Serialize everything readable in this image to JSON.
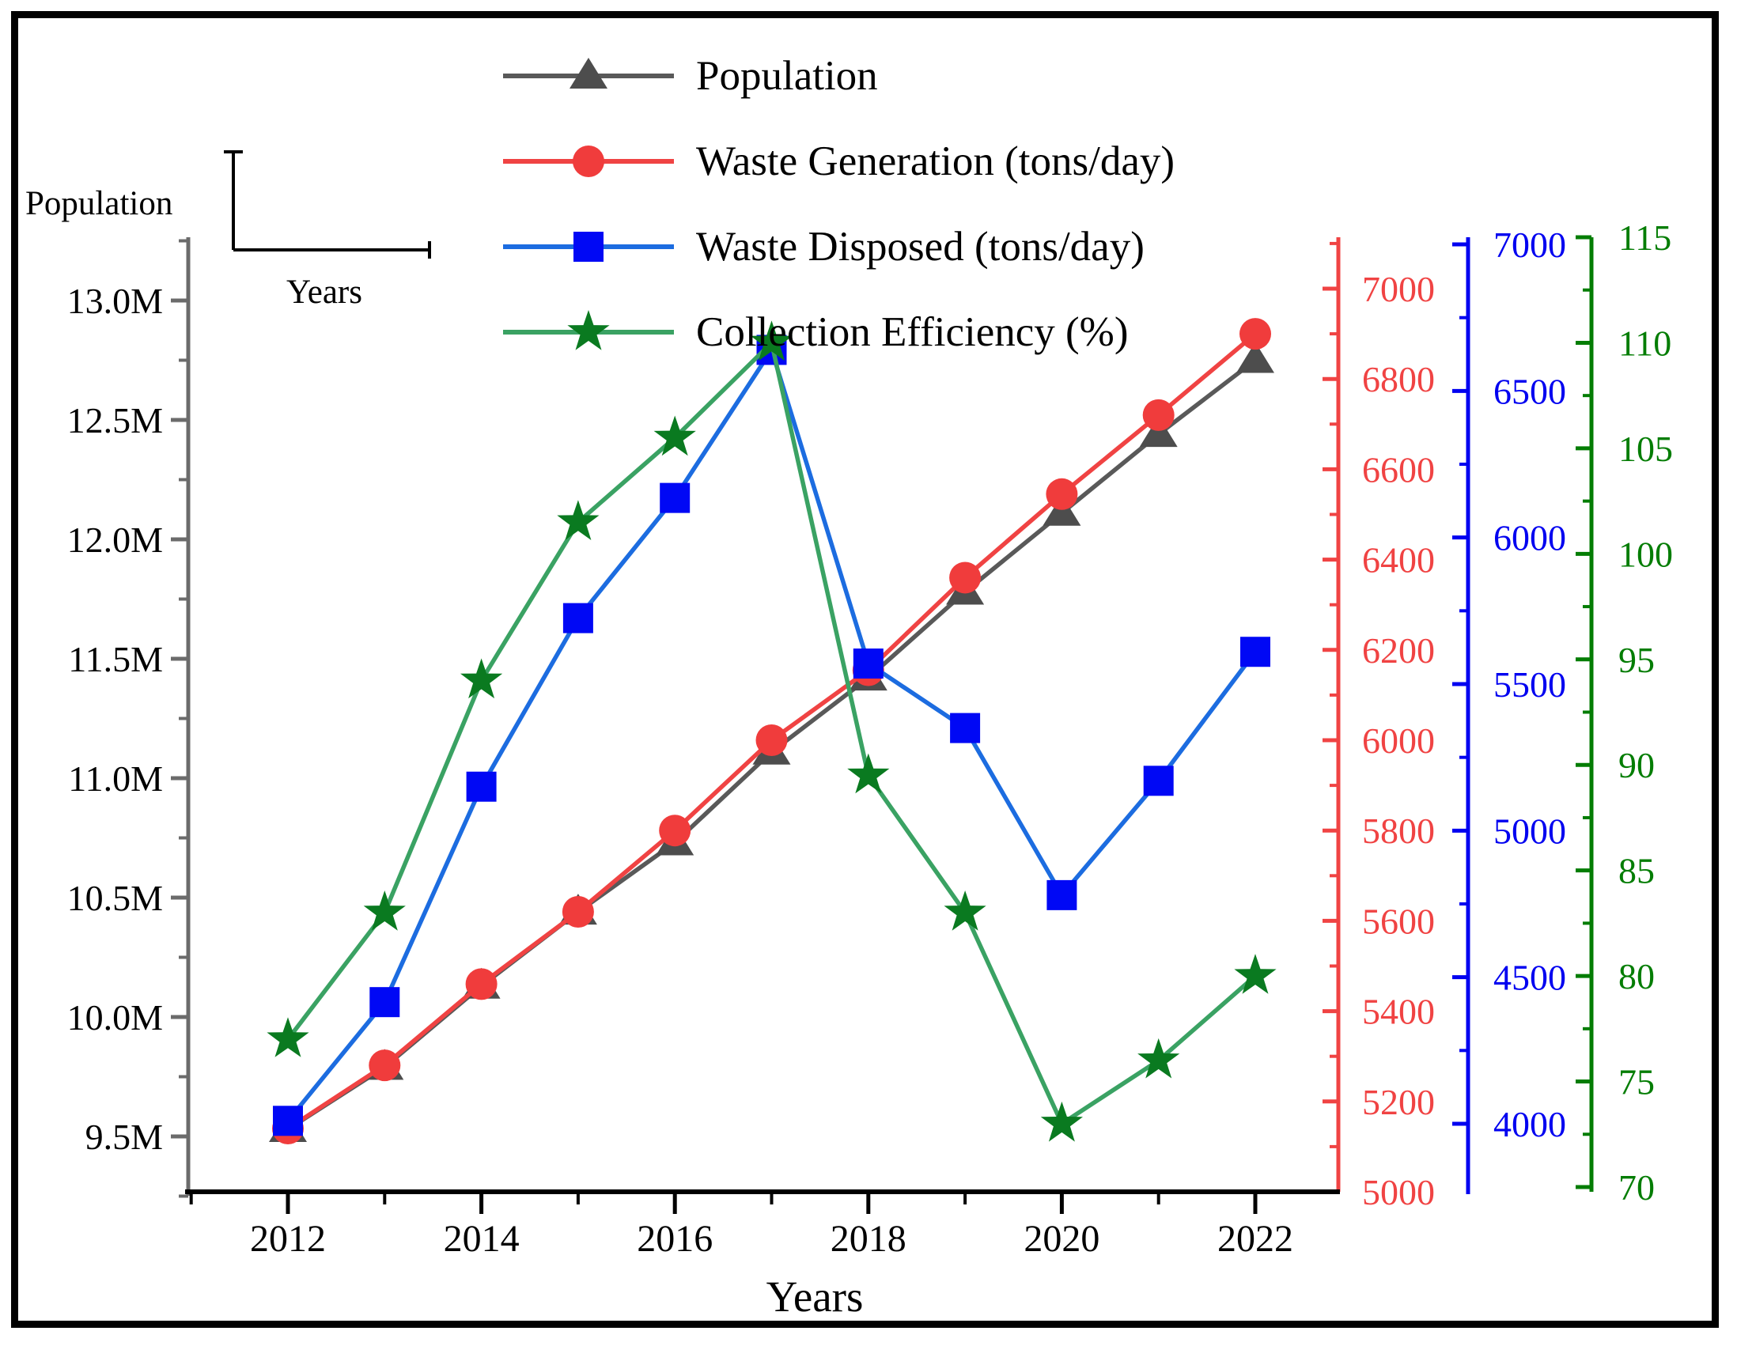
{
  "figure": {
    "background": "#ffffff",
    "border_color": "#000000"
  },
  "inset": {
    "population_label": "Population",
    "years_label": "Years"
  },
  "chart_data": {
    "type": "line",
    "x_title": "Years",
    "x": [
      2012,
      2013,
      2014,
      2015,
      2016,
      2017,
      2018,
      2019,
      2020,
      2021,
      2022
    ],
    "x_axis": {
      "tick_values": [
        2012,
        2014,
        2016,
        2018,
        2020,
        2022
      ],
      "tick_labels": [
        "2012",
        "2014",
        "2016",
        "2018",
        "2020",
        "2022"
      ],
      "minor_tick_values": [
        2011,
        2013,
        2015,
        2017,
        2019,
        2021
      ],
      "range": [
        2011,
        2022.9
      ],
      "color": "#000000"
    },
    "axes": {
      "population": {
        "side": "left",
        "axis_color": "#6b6b6b",
        "label_color": "#000000",
        "unit": "millions",
        "tick_values": [
          9.5,
          10.0,
          10.5,
          11.0,
          11.5,
          12.0,
          12.5,
          13.0
        ],
        "tick_labels": [
          "9.5M",
          "10.0M",
          "10.5M",
          "11.0M",
          "11.5M",
          "12.0M",
          "12.5M",
          "13.0M"
        ],
        "minor_tick_values": [
          9.25,
          9.75,
          10.25,
          10.75,
          11.25,
          11.75,
          12.25,
          12.75,
          13.25
        ],
        "range": [
          9.27,
          13.26
        ]
      },
      "waste_generation": {
        "side": "right",
        "axis_color": "#f04343",
        "label_color": "#f04343",
        "tick_values": [
          5000,
          5200,
          5400,
          5600,
          5800,
          6000,
          6200,
          6400,
          6600,
          6800,
          7000
        ],
        "tick_labels": [
          "5000",
          "5200",
          "5400",
          "5600",
          "5800",
          "6000",
          "6200",
          "6400",
          "6600",
          "6800",
          "7000"
        ],
        "minor_tick_values": [
          5100,
          5300,
          5500,
          5700,
          5900,
          6100,
          6300,
          6500,
          6700,
          6900,
          7100
        ],
        "range": [
          5000,
          7110
        ]
      },
      "waste_disposed": {
        "side": "right",
        "axis_color": "#0000f0",
        "label_color": "#0000f0",
        "tick_values": [
          4000,
          4500,
          5000,
          5500,
          6000,
          6500,
          7000
        ],
        "tick_labels": [
          "4000",
          "4500",
          "5000",
          "5500",
          "6000",
          "6500",
          "7000"
        ],
        "minor_tick_values": [
          4250,
          4750,
          5250,
          5750,
          6250,
          6750
        ],
        "range": [
          3760,
          7025
        ]
      },
      "efficiency": {
        "side": "right",
        "axis_color": "#047d04",
        "label_color": "#047d04",
        "tick_values": [
          70,
          75,
          80,
          85,
          90,
          95,
          100,
          105,
          110,
          115
        ],
        "tick_labels": [
          "70",
          "75",
          "80",
          "85",
          "90",
          "95",
          "100",
          "105",
          "110",
          "115"
        ],
        "minor_tick_values": [
          72.5,
          77.5,
          82.5,
          87.5,
          92.5,
          97.5,
          102.5,
          107.5,
          112.5
        ],
        "range": [
          69.8,
          115.2
        ]
      }
    },
    "series": [
      {
        "name": "Population",
        "axis": "population",
        "line_color": "#595959",
        "marker": "triangle-up",
        "marker_color": "#4d4d4d",
        "values": [
          9.53,
          9.79,
          10.13,
          10.44,
          10.73,
          11.11,
          11.42,
          11.78,
          12.11,
          12.44,
          12.75
        ]
      },
      {
        "name": "Waste Generation (tons/day)",
        "axis": "waste_generation",
        "line_color": "#f04343",
        "marker": "circle",
        "marker_color": "#f03c3c",
        "values": [
          5140,
          5280,
          5460,
          5620,
          5800,
          6000,
          6155,
          6360,
          6545,
          6720,
          6900
        ]
      },
      {
        "name": "Waste Disposed (tons/day)",
        "axis": "waste_disposed",
        "line_color": "#1c6ce0",
        "marker": "square",
        "marker_color": "#0008f5",
        "values": [
          4010,
          4415,
          5150,
          5725,
          6135,
          6640,
          5570,
          5350,
          4780,
          5170,
          5610
        ]
      },
      {
        "name": "Collection Efficiency (%)",
        "axis": "efficiency",
        "line_color": "#3aa263",
        "marker": "star",
        "marker_color": "#0a7a20",
        "values": [
          77,
          83,
          94,
          101.5,
          105.5,
          110,
          89.5,
          83,
          73,
          76,
          80
        ]
      }
    ]
  }
}
